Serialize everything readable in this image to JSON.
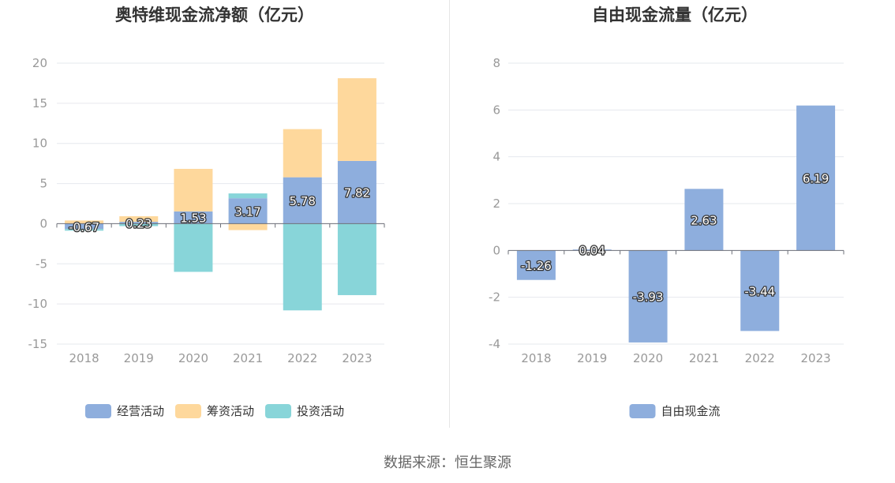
{
  "source_text": "数据来源：恒生聚源",
  "colors": {
    "operating": "#8eaedd",
    "financing": "#fed89c",
    "investing": "#88d5d9",
    "free_cash_flow": "#8eaedd",
    "grid": "#e6e8ee",
    "axis_text": "#999999",
    "title": "#333333"
  },
  "chart_data": [
    {
      "type": "bar",
      "stacked": true,
      "title": "奥特维现金流净额（亿元）",
      "xlabel": "",
      "ylabel": "",
      "categories": [
        "2018",
        "2019",
        "2020",
        "2021",
        "2022",
        "2023"
      ],
      "ylim": [
        -15,
        20
      ],
      "yticks": [
        20,
        15,
        10,
        5,
        0,
        -5,
        -10,
        -15
      ],
      "grid": true,
      "legend": "bottom-center",
      "series": [
        {
          "name": "经营活动",
          "color": "#8eaedd",
          "values": [
            -0.67,
            0.23,
            1.53,
            3.17,
            5.78,
            7.82
          ],
          "labels": [
            "-0.67",
            "0.23",
            "1.53",
            "3.17",
            "5.78",
            "7.82"
          ]
        },
        {
          "name": "筹资活动",
          "color": "#fed89c",
          "values": [
            0.4,
            0.7,
            5.3,
            -0.8,
            6.0,
            10.3
          ]
        },
        {
          "name": "投资活动",
          "color": "#88d5d9",
          "values": [
            -0.2,
            -0.3,
            -6.0,
            0.6,
            -10.8,
            -8.9
          ]
        }
      ]
    },
    {
      "type": "bar",
      "title": "自由现金流量（亿元）",
      "xlabel": "",
      "ylabel": "",
      "categories": [
        "2018",
        "2019",
        "2020",
        "2021",
        "2022",
        "2023"
      ],
      "ylim": [
        -4,
        8
      ],
      "yticks": [
        8,
        6,
        4,
        2,
        0,
        -2,
        -4
      ],
      "grid": true,
      "legend": "bottom-center",
      "series": [
        {
          "name": "自由现金流",
          "color": "#8eaedd",
          "values": [
            -1.26,
            0.04,
            -3.93,
            2.63,
            -3.44,
            6.19
          ],
          "labels": [
            "-1.26",
            "0.04",
            "-3.93",
            "2.63",
            "-3.44",
            "6.19"
          ]
        }
      ]
    }
  ]
}
